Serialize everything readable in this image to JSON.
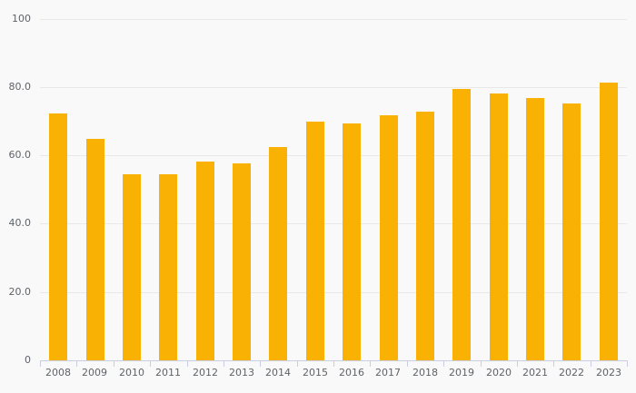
{
  "chart_data": {
    "type": "bar",
    "title": "",
    "xlabel": "",
    "ylabel": "",
    "categories": [
      "2008",
      "2009",
      "2010",
      "2011",
      "2012",
      "2013",
      "2014",
      "2015",
      "2016",
      "2017",
      "2018",
      "2019",
      "2020",
      "2021",
      "2022",
      "2023"
    ],
    "values": [
      72.4,
      64.9,
      54.4,
      54.5,
      58.2,
      57.7,
      62.4,
      69.9,
      69.4,
      71.8,
      72.9,
      79.5,
      78.2,
      76.9,
      75.3,
      81.3
    ],
    "ylim": [
      0,
      100
    ],
    "yticks": [
      {
        "value": 0,
        "label": "0"
      },
      {
        "value": 20,
        "label": "20.0"
      },
      {
        "value": 40,
        "label": "40.0"
      },
      {
        "value": 60,
        "label": "60.0"
      },
      {
        "value": 80,
        "label": "80.0"
      },
      {
        "value": 100,
        "label": "100"
      }
    ],
    "grid": true,
    "legend": "none",
    "colors": {
      "bar": "#F9B104",
      "background": "#F9F9F9",
      "gridline": "#E8E8E8",
      "axis_line": "#C9CFE0",
      "tick_label": "#5F6368"
    }
  }
}
